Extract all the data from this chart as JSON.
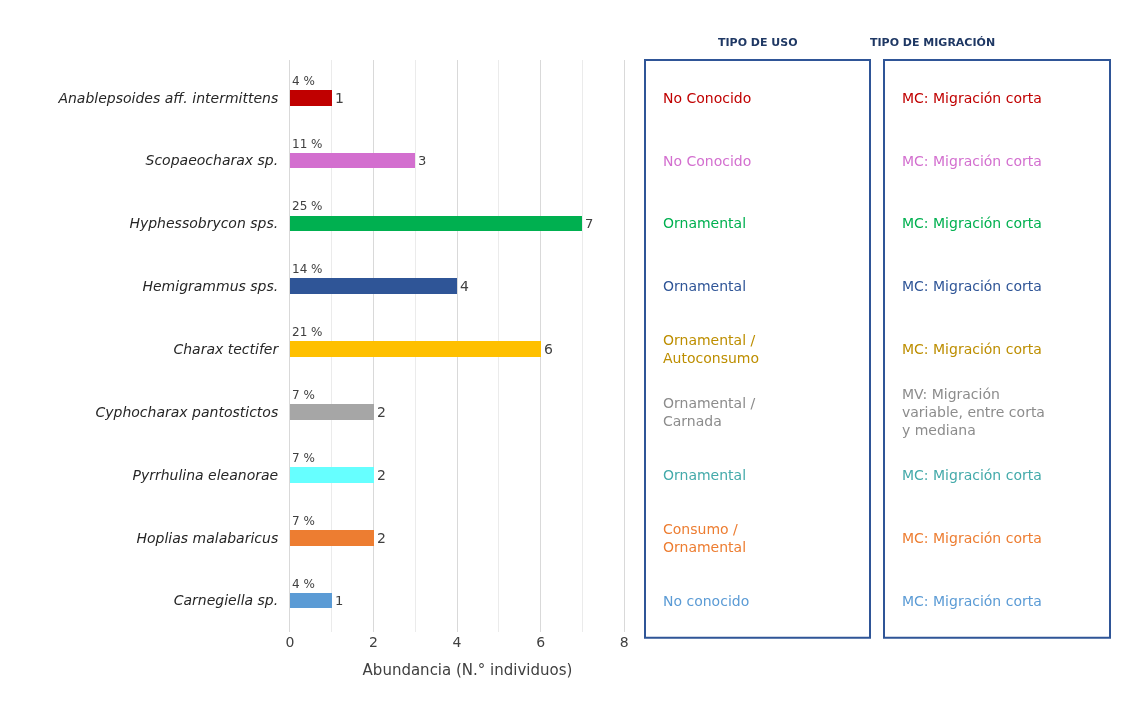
{
  "chart_data": {
    "type": "bar",
    "orientation": "horizontal",
    "xlabel": "Abundancia (N.° individuos)",
    "categories": [
      "Anablepsoides aff. intermittens",
      "Scopaeocharax sp.",
      "Hyphessobrycon sps.",
      "Hemigrammus sps.",
      "Charax tectifer",
      "Cyphocharax pantostictos",
      "Pyrrhulina eleanorae",
      "Hoplias malabaricus",
      "Carnegiella sp."
    ],
    "values": [
      1,
      3,
      7,
      4,
      6,
      2,
      2,
      2,
      1
    ],
    "colors": [
      "#c00000",
      "#d36fcf",
      "#00b050",
      "#2f5597",
      "#ffc000",
      "#a6a6a6",
      "#66ffff",
      "#ed7d31",
      "#5b9bd5"
    ],
    "data_labels": true,
    "xlim": [
      0,
      8.5
    ],
    "xticks": [
      0,
      2,
      4,
      6,
      8
    ],
    "grid": "x",
    "annotations": [
      "TIPO DE USO",
      "No Conocido",
      "No Conocido",
      "Ornamental",
      "Ornamental",
      "Ornamental /\nAutoconsumo",
      "Ornamental /\nCarnada",
      "Ornamental",
      "Consumo /\nOrnamental",
      "No conocido",
      "TIPO DE MIGRACIÓN",
      "MC: Migración corta",
      "MC: Migración corta",
      "MC: Migración corta",
      "MC: Migración corta",
      "MC: Migración corta",
      "MV: Migración\nvariable, entre corta\ny mediana",
      "MC: Migración corta",
      "MC: Migración corta",
      "MC: Migración corta",
      "4 %",
      "11 %",
      "25 %",
      "14 %",
      "21 %",
      "7 %",
      "7 %",
      "7 %",
      "4 %"
    ]
  }
}
